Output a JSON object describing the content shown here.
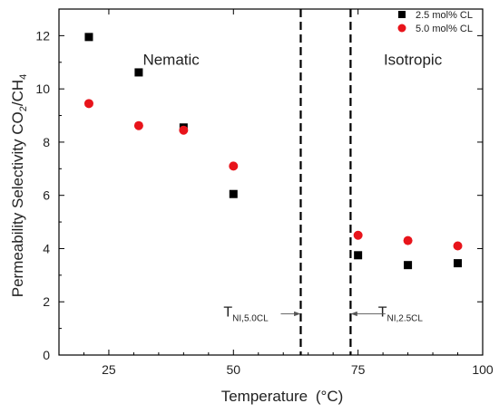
{
  "chart_data": {
    "type": "scatter",
    "x_label": "Temperature",
    "x_unit": "(°C)",
    "y_label_main": "Permeability Selectivity CO",
    "y_label_sub1": "2",
    "y_label_mid": "/CH",
    "y_label_sub2": "4",
    "xlim": [
      15,
      100
    ],
    "ylim": [
      0,
      13
    ],
    "x_ticks": [
      25,
      50,
      75,
      100
    ],
    "y_ticks": [
      0,
      2,
      4,
      6,
      8,
      10,
      12
    ],
    "x_tick_labels": [
      "25",
      "50",
      "75",
      "100"
    ],
    "y_tick_labels": [
      "0",
      "2",
      "4",
      "6",
      "8",
      "10",
      "12"
    ],
    "legend_position": "top-right",
    "series": [
      {
        "name": "2.5 mol% CL",
        "marker": "square",
        "color": "#000000",
        "points": [
          {
            "x": 21,
            "y": 11.95
          },
          {
            "x": 31,
            "y": 10.62
          },
          {
            "x": 40,
            "y": 8.55
          },
          {
            "x": 50,
            "y": 6.05
          },
          {
            "x": 75,
            "y": 3.75
          },
          {
            "x": 85,
            "y": 3.38
          },
          {
            "x": 95,
            "y": 3.45
          }
        ]
      },
      {
        "name": "5.0 mol% CL",
        "marker": "circle",
        "color": "#e8141b",
        "points": [
          {
            "x": 21,
            "y": 9.45
          },
          {
            "x": 31,
            "y": 8.62
          },
          {
            "x": 40,
            "y": 8.45
          },
          {
            "x": 50,
            "y": 7.1
          },
          {
            "x": 75,
            "y": 4.5
          },
          {
            "x": 85,
            "y": 4.3
          },
          {
            "x": 95,
            "y": 4.1
          }
        ]
      }
    ],
    "vertical_lines": [
      {
        "x": 63.5,
        "style": "dashed"
      },
      {
        "x": 73.5,
        "style": "dashed"
      }
    ],
    "region_labels": [
      {
        "text": "Nematic",
        "x": 37.5,
        "y": 10.9
      },
      {
        "text": "Isotropic",
        "x": 86,
        "y": 10.9
      }
    ],
    "annotations": [
      {
        "main": "T",
        "sub": "NI,5.0CL",
        "x": 52.5,
        "y": 1.45,
        "arrow_from_x": 59.5,
        "arrow_to_x": 63.3,
        "arrow_y": 1.55
      },
      {
        "main": "T",
        "sub": "NI,2.5CL",
        "x": 83.5,
        "y": 1.45,
        "arrow_from_x": 80.5,
        "arrow_to_x": 73.7,
        "arrow_y": 1.55
      }
    ]
  }
}
